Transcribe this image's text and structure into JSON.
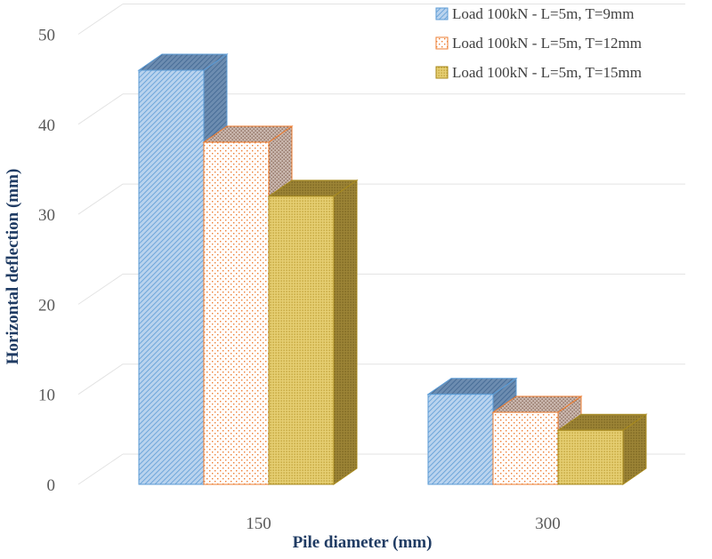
{
  "chart_data": {
    "type": "bar",
    "subtype": "3d-clustered-column",
    "categories": [
      "150",
      "300"
    ],
    "series": [
      {
        "name": "Load 100kN - L=5m, T=9mm",
        "values": [
          46,
          10
        ],
        "color": "#5b9bd5",
        "pattern": "diagonal-hatch"
      },
      {
        "name": "Load 100kN - L=5m, T=12mm",
        "values": [
          38,
          8
        ],
        "color": "#ed7d31",
        "pattern": "dots"
      },
      {
        "name": "Load 100kN - L=5m, T=15mm",
        "values": [
          32,
          6
        ],
        "color": "#c9a227",
        "pattern": "fine-dots"
      }
    ],
    "xlabel": "Pile diameter (mm)",
    "ylabel": "Horizontal  deflection (mm)",
    "ylim": [
      0,
      50
    ],
    "yticks": [
      0,
      10,
      20,
      30,
      40,
      50
    ],
    "grid": true,
    "legend_position": "top-right"
  }
}
